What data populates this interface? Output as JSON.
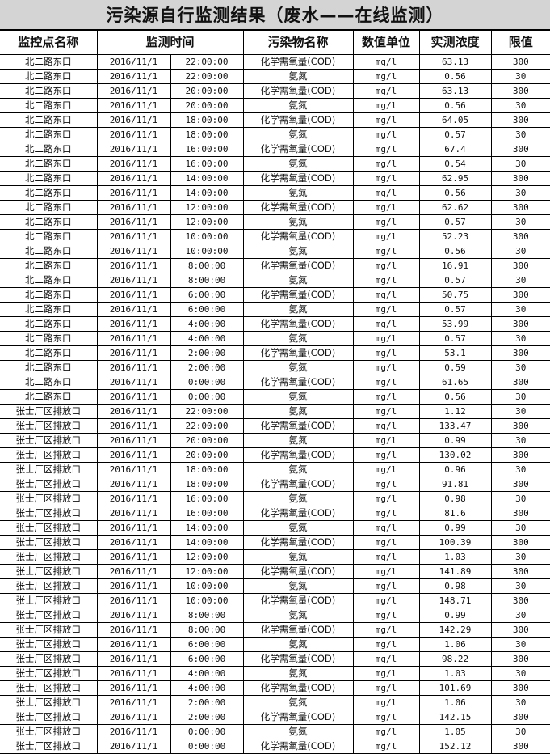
{
  "title": "污染源自行监测结果（废水——在线监测）",
  "headers": {
    "site": "监控点名称",
    "time": "监测时间",
    "pollutant": "污染物名称",
    "unit": "数值单位",
    "value": "实测浓度",
    "limit": "限值"
  },
  "rows": [
    [
      "北二路东口",
      "2016/11/1",
      "22:00:00",
      "化学需氧量(COD)",
      "mg/l",
      "63.13",
      "300"
    ],
    [
      "北二路东口",
      "2016/11/1",
      "22:00:00",
      "氨氮",
      "mg/l",
      "0.56",
      "30"
    ],
    [
      "北二路东口",
      "2016/11/1",
      "20:00:00",
      "化学需氧量(COD)",
      "mg/l",
      "63.13",
      "300"
    ],
    [
      "北二路东口",
      "2016/11/1",
      "20:00:00",
      "氨氮",
      "mg/l",
      "0.56",
      "30"
    ],
    [
      "北二路东口",
      "2016/11/1",
      "18:00:00",
      "化学需氧量(COD)",
      "mg/l",
      "64.05",
      "300"
    ],
    [
      "北二路东口",
      "2016/11/1",
      "18:00:00",
      "氨氮",
      "mg/l",
      "0.57",
      "30"
    ],
    [
      "北二路东口",
      "2016/11/1",
      "16:00:00",
      "化学需氧量(COD)",
      "mg/l",
      "67.4",
      "300"
    ],
    [
      "北二路东口",
      "2016/11/1",
      "16:00:00",
      "氨氮",
      "mg/l",
      "0.54",
      "30"
    ],
    [
      "北二路东口",
      "2016/11/1",
      "14:00:00",
      "化学需氧量(COD)",
      "mg/l",
      "62.95",
      "300"
    ],
    [
      "北二路东口",
      "2016/11/1",
      "14:00:00",
      "氨氮",
      "mg/l",
      "0.56",
      "30"
    ],
    [
      "北二路东口",
      "2016/11/1",
      "12:00:00",
      "化学需氧量(COD)",
      "mg/l",
      "62.62",
      "300"
    ],
    [
      "北二路东口",
      "2016/11/1",
      "12:00:00",
      "氨氮",
      "mg/l",
      "0.57",
      "30"
    ],
    [
      "北二路东口",
      "2016/11/1",
      "10:00:00",
      "化学需氧量(COD)",
      "mg/l",
      "52.23",
      "300"
    ],
    [
      "北二路东口",
      "2016/11/1",
      "10:00:00",
      "氨氮",
      "mg/l",
      "0.56",
      "30"
    ],
    [
      "北二路东口",
      "2016/11/1",
      "8:00:00",
      "化学需氧量(COD)",
      "mg/l",
      "16.91",
      "300"
    ],
    [
      "北二路东口",
      "2016/11/1",
      "8:00:00",
      "氨氮",
      "mg/l",
      "0.57",
      "30"
    ],
    [
      "北二路东口",
      "2016/11/1",
      "6:00:00",
      "化学需氧量(COD)",
      "mg/l",
      "50.75",
      "300"
    ],
    [
      "北二路东口",
      "2016/11/1",
      "6:00:00",
      "氨氮",
      "mg/l",
      "0.57",
      "30"
    ],
    [
      "北二路东口",
      "2016/11/1",
      "4:00:00",
      "化学需氧量(COD)",
      "mg/l",
      "53.99",
      "300"
    ],
    [
      "北二路东口",
      "2016/11/1",
      "4:00:00",
      "氨氮",
      "mg/l",
      "0.57",
      "30"
    ],
    [
      "北二路东口",
      "2016/11/1",
      "2:00:00",
      "化学需氧量(COD)",
      "mg/l",
      "53.1",
      "300"
    ],
    [
      "北二路东口",
      "2016/11/1",
      "2:00:00",
      "氨氮",
      "mg/l",
      "0.59",
      "30"
    ],
    [
      "北二路东口",
      "2016/11/1",
      "0:00:00",
      "化学需氧量(COD)",
      "mg/l",
      "61.65",
      "300"
    ],
    [
      "北二路东口",
      "2016/11/1",
      "0:00:00",
      "氨氮",
      "mg/l",
      "0.56",
      "30"
    ],
    [
      "张士厂区排放口",
      "2016/11/1",
      "22:00:00",
      "氨氮",
      "mg/l",
      "1.12",
      "30"
    ],
    [
      "张士厂区排放口",
      "2016/11/1",
      "22:00:00",
      "化学需氧量(COD)",
      "mg/l",
      "133.47",
      "300"
    ],
    [
      "张士厂区排放口",
      "2016/11/1",
      "20:00:00",
      "氨氮",
      "mg/l",
      "0.99",
      "30"
    ],
    [
      "张士厂区排放口",
      "2016/11/1",
      "20:00:00",
      "化学需氧量(COD)",
      "mg/l",
      "130.02",
      "300"
    ],
    [
      "张士厂区排放口",
      "2016/11/1",
      "18:00:00",
      "氨氮",
      "mg/l",
      "0.96",
      "30"
    ],
    [
      "张士厂区排放口",
      "2016/11/1",
      "18:00:00",
      "化学需氧量(COD)",
      "mg/l",
      "91.81",
      "300"
    ],
    [
      "张士厂区排放口",
      "2016/11/1",
      "16:00:00",
      "氨氮",
      "mg/l",
      "0.98",
      "30"
    ],
    [
      "张士厂区排放口",
      "2016/11/1",
      "16:00:00",
      "化学需氧量(COD)",
      "mg/l",
      "81.6",
      "300"
    ],
    [
      "张士厂区排放口",
      "2016/11/1",
      "14:00:00",
      "氨氮",
      "mg/l",
      "0.99",
      "30"
    ],
    [
      "张士厂区排放口",
      "2016/11/1",
      "14:00:00",
      "化学需氧量(COD)",
      "mg/l",
      "100.39",
      "300"
    ],
    [
      "张士厂区排放口",
      "2016/11/1",
      "12:00:00",
      "氨氮",
      "mg/l",
      "1.03",
      "30"
    ],
    [
      "张士厂区排放口",
      "2016/11/1",
      "12:00:00",
      "化学需氧量(COD)",
      "mg/l",
      "141.89",
      "300"
    ],
    [
      "张士厂区排放口",
      "2016/11/1",
      "10:00:00",
      "氨氮",
      "mg/l",
      "0.98",
      "30"
    ],
    [
      "张士厂区排放口",
      "2016/11/1",
      "10:00:00",
      "化学需氧量(COD)",
      "mg/l",
      "148.71",
      "300"
    ],
    [
      "张士厂区排放口",
      "2016/11/1",
      "8:00:00",
      "氨氮",
      "mg/l",
      "0.99",
      "30"
    ],
    [
      "张士厂区排放口",
      "2016/11/1",
      "8:00:00",
      "化学需氧量(COD)",
      "mg/l",
      "142.29",
      "300"
    ],
    [
      "张士厂区排放口",
      "2016/11/1",
      "6:00:00",
      "氨氮",
      "mg/l",
      "1.06",
      "30"
    ],
    [
      "张士厂区排放口",
      "2016/11/1",
      "6:00:00",
      "化学需氧量(COD)",
      "mg/l",
      "98.22",
      "300"
    ],
    [
      "张士厂区排放口",
      "2016/11/1",
      "4:00:00",
      "氨氮",
      "mg/l",
      "1.03",
      "30"
    ],
    [
      "张士厂区排放口",
      "2016/11/1",
      "4:00:00",
      "化学需氧量(COD)",
      "mg/l",
      "101.69",
      "300"
    ],
    [
      "张士厂区排放口",
      "2016/11/1",
      "2:00:00",
      "氨氮",
      "mg/l",
      "1.06",
      "30"
    ],
    [
      "张士厂区排放口",
      "2016/11/1",
      "2:00:00",
      "化学需氧量(COD)",
      "mg/l",
      "142.15",
      "300"
    ],
    [
      "张士厂区排放口",
      "2016/11/1",
      "0:00:00",
      "氨氮",
      "mg/l",
      "1.05",
      "30"
    ],
    [
      "张士厂区排放口",
      "2016/11/1",
      "0:00:00",
      "化学需氧量(COD)",
      "mg/l",
      "152.12",
      "300"
    ]
  ]
}
